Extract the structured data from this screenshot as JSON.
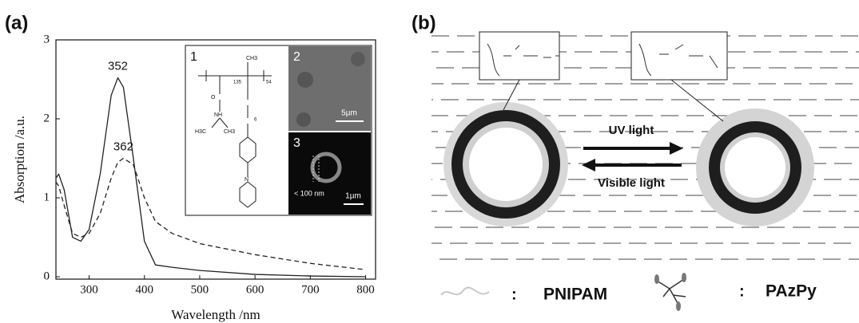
{
  "chart_data": {
    "type": "line",
    "x_label": "Wavelength /nm",
    "y_label": "Absorption /a.u.",
    "x": [
      240,
      245,
      255,
      270,
      285,
      300,
      320,
      340,
      352,
      362,
      380,
      400,
      420,
      450,
      500,
      600,
      700,
      800
    ],
    "series": [
      {
        "color": "#222222",
        "line_style": "solid",
        "values": [
          1.25,
          1.3,
          1.1,
          0.5,
          0.45,
          0.6,
          1.3,
          2.3,
          2.52,
          2.4,
          1.5,
          0.45,
          0.15,
          0.12,
          0.08,
          0.03,
          0.01,
          0.0
        ]
      },
      {
        "color": "#222222",
        "line_style": "dashed",
        "values": [
          1.2,
          1.15,
          0.9,
          0.55,
          0.5,
          0.55,
          0.8,
          1.25,
          1.45,
          1.5,
          1.42,
          1.0,
          0.7,
          0.55,
          0.42,
          0.28,
          0.17,
          0.09
        ]
      }
    ],
    "annotations": [
      {
        "text": "352",
        "x": 352,
        "y": 2.52
      },
      {
        "text": "362",
        "x": 362,
        "y": 1.5
      }
    ],
    "xlim": [
      240,
      818
    ],
    "ylim": [
      -0.03,
      3
    ],
    "xticks": [
      300,
      400,
      500,
      600,
      700,
      800
    ],
    "yticks": [
      0,
      1,
      2,
      3
    ]
  },
  "figure": {
    "panel_a_label": "(a)",
    "panel_b_label": "(b)",
    "inset": {
      "labels": [
        "1",
        "2",
        "3"
      ],
      "scale_2": "5µm",
      "scale_3": "1µm",
      "thickness": "< 100 nm",
      "structure": [
        "CH3",
        "135",
        "54",
        "O",
        "NH",
        "H3C",
        "CH3",
        "6",
        "N"
      ]
    },
    "diagram": {
      "uv": "UV light",
      "visible": "Visible light",
      "colon_1": ":",
      "pnipam": "PNIPAM",
      "colon_2": ":",
      "pazpy": "PAzPy"
    }
  }
}
